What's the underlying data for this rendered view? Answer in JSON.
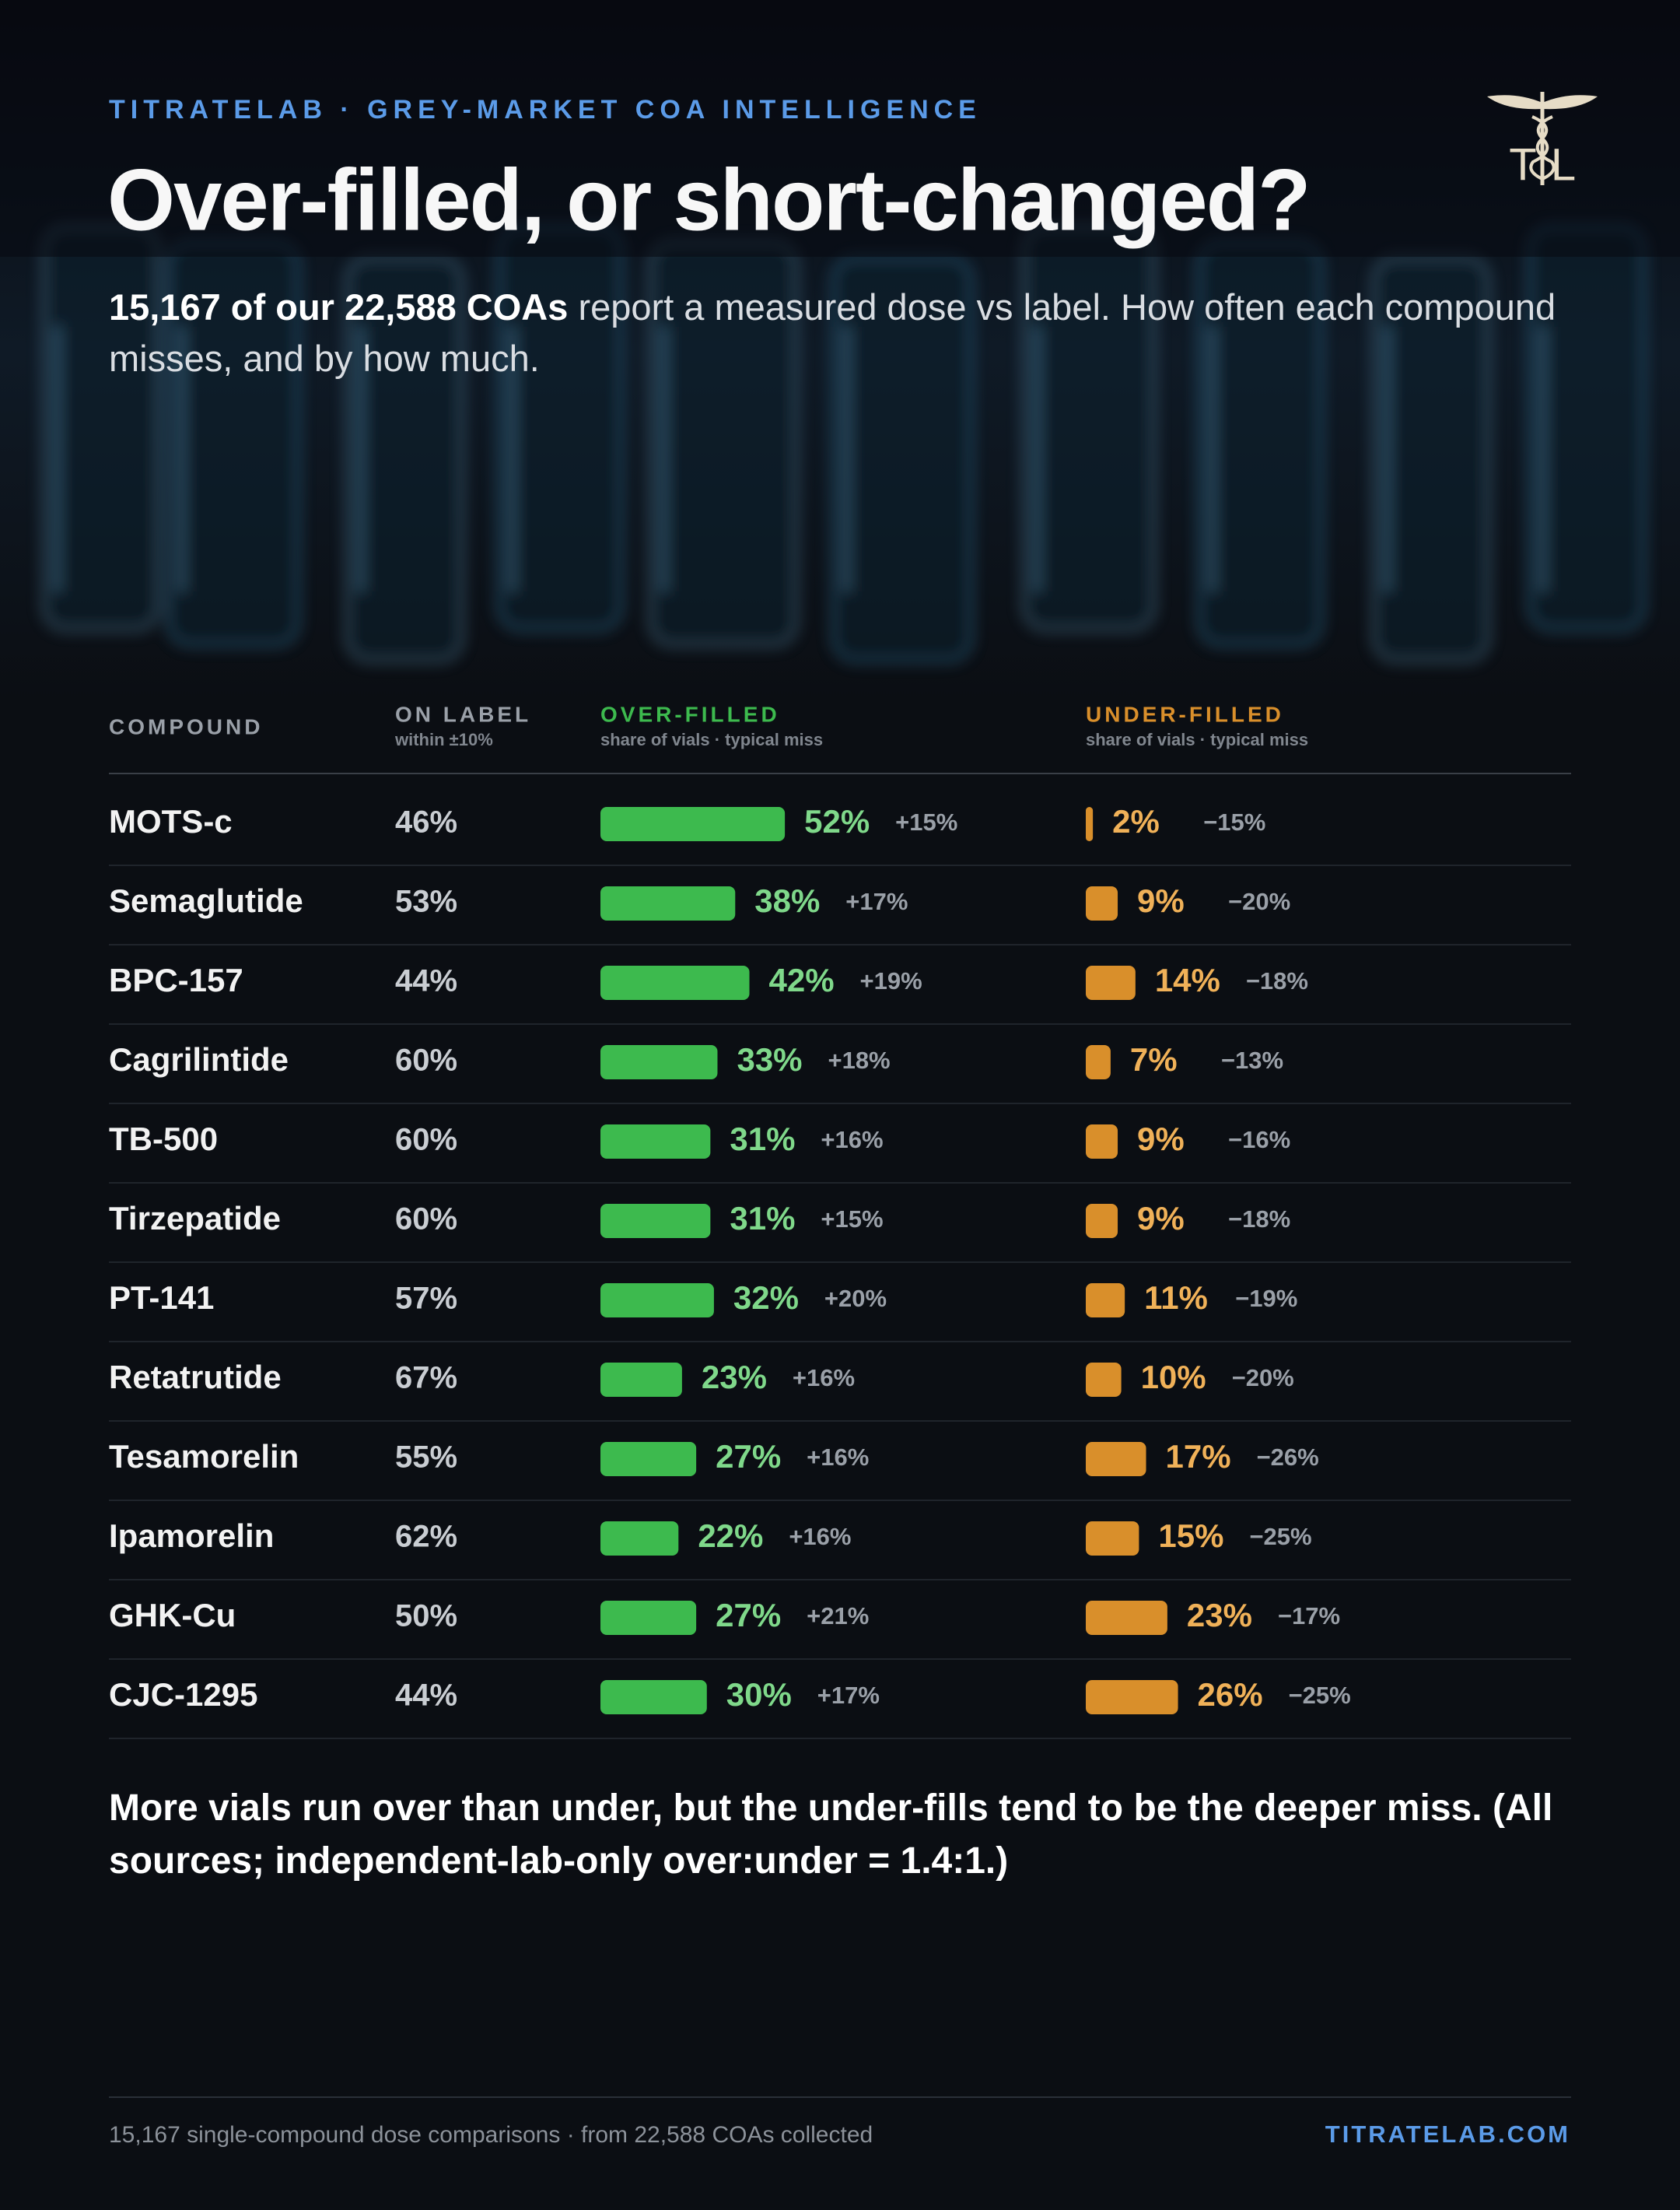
{
  "header": {
    "brand": "TITRATELAB · GREY-MARKET COA INTELLIGENCE",
    "title": "Over-filled, or short-changed?",
    "subtitle_bold": "15,167 of our 22,588 COAs",
    "subtitle": "report a measured dose vs label. How often each compound misses, and by how much.",
    "logo_letters": [
      "T",
      "L"
    ]
  },
  "chart_data": {
    "type": "table-bars",
    "columns": {
      "compound": "COMPOUND",
      "on_label": "ON LABEL",
      "on_label_note": "within ±10%",
      "over": "OVER-FILLED",
      "over_note": "share of vials · typical miss",
      "under": "UNDER-FILLED",
      "under_note": "share of vials · typical miss"
    },
    "categories": [
      "MOTS-c",
      "Semaglutide",
      "BPC-157",
      "Cagrilintide",
      "TB-500",
      "Tirzepatide",
      "PT-141",
      "Retatrutide",
      "Tesamorelin",
      "Ipamorelin",
      "GHK-Cu",
      "CJC-1295"
    ],
    "on_label": {
      "values": [
        46,
        53,
        44,
        60,
        60,
        60,
        57,
        67,
        55,
        62,
        50,
        44
      ],
      "value_labels": [
        "46%",
        "53%",
        "44%",
        "60%",
        "60%",
        "60%",
        "57%",
        "67%",
        "55%",
        "62%",
        "50%",
        "44%"
      ]
    },
    "over_filled": {
      "color": "#3dba4e",
      "label_color": "#7fd88a",
      "values": [
        52,
        38,
        42,
        33,
        31,
        31,
        32,
        23,
        27,
        22,
        27,
        30
      ],
      "value_labels": [
        "52%",
        "38%",
        "42%",
        "33%",
        "31%",
        "31%",
        "32%",
        "23%",
        "27%",
        "22%",
        "27%",
        "30%"
      ],
      "miss_values": [
        15,
        17,
        19,
        18,
        16,
        15,
        20,
        16,
        16,
        16,
        21,
        17
      ],
      "miss_labels": [
        "+15%",
        "+17%",
        "+19%",
        "+18%",
        "+16%",
        "+15%",
        "+20%",
        "+16%",
        "+16%",
        "+16%",
        "+21%",
        "+17%"
      ]
    },
    "under_filled": {
      "color": "#d98f2b",
      "label_color": "#f0b158",
      "values": [
        2,
        9,
        14,
        7,
        9,
        9,
        11,
        10,
        17,
        15,
        23,
        26
      ],
      "value_labels": [
        "2%",
        "9%",
        "14%",
        "7%",
        "9%",
        "9%",
        "11%",
        "10%",
        "17%",
        "15%",
        "23%",
        "26%"
      ],
      "miss_values": [
        -15,
        -20,
        -18,
        -13,
        -16,
        -18,
        -19,
        -20,
        -26,
        -25,
        -17,
        -25
      ],
      "miss_labels": [
        "−15%",
        "−20%",
        "−18%",
        "−13%",
        "−16%",
        "−18%",
        "−19%",
        "−20%",
        "−26%",
        "−25%",
        "−17%",
        "−25%"
      ]
    }
  },
  "note": "More vials run over than under, but the under-fills tend to be the deeper miss. (All sources; independent-lab-only over:under = 1.4:1.)",
  "footer": {
    "text": "15,167 single-compound dose comparisons · from 22,588 COAs collected",
    "site": "TITRATELAB.COM"
  }
}
